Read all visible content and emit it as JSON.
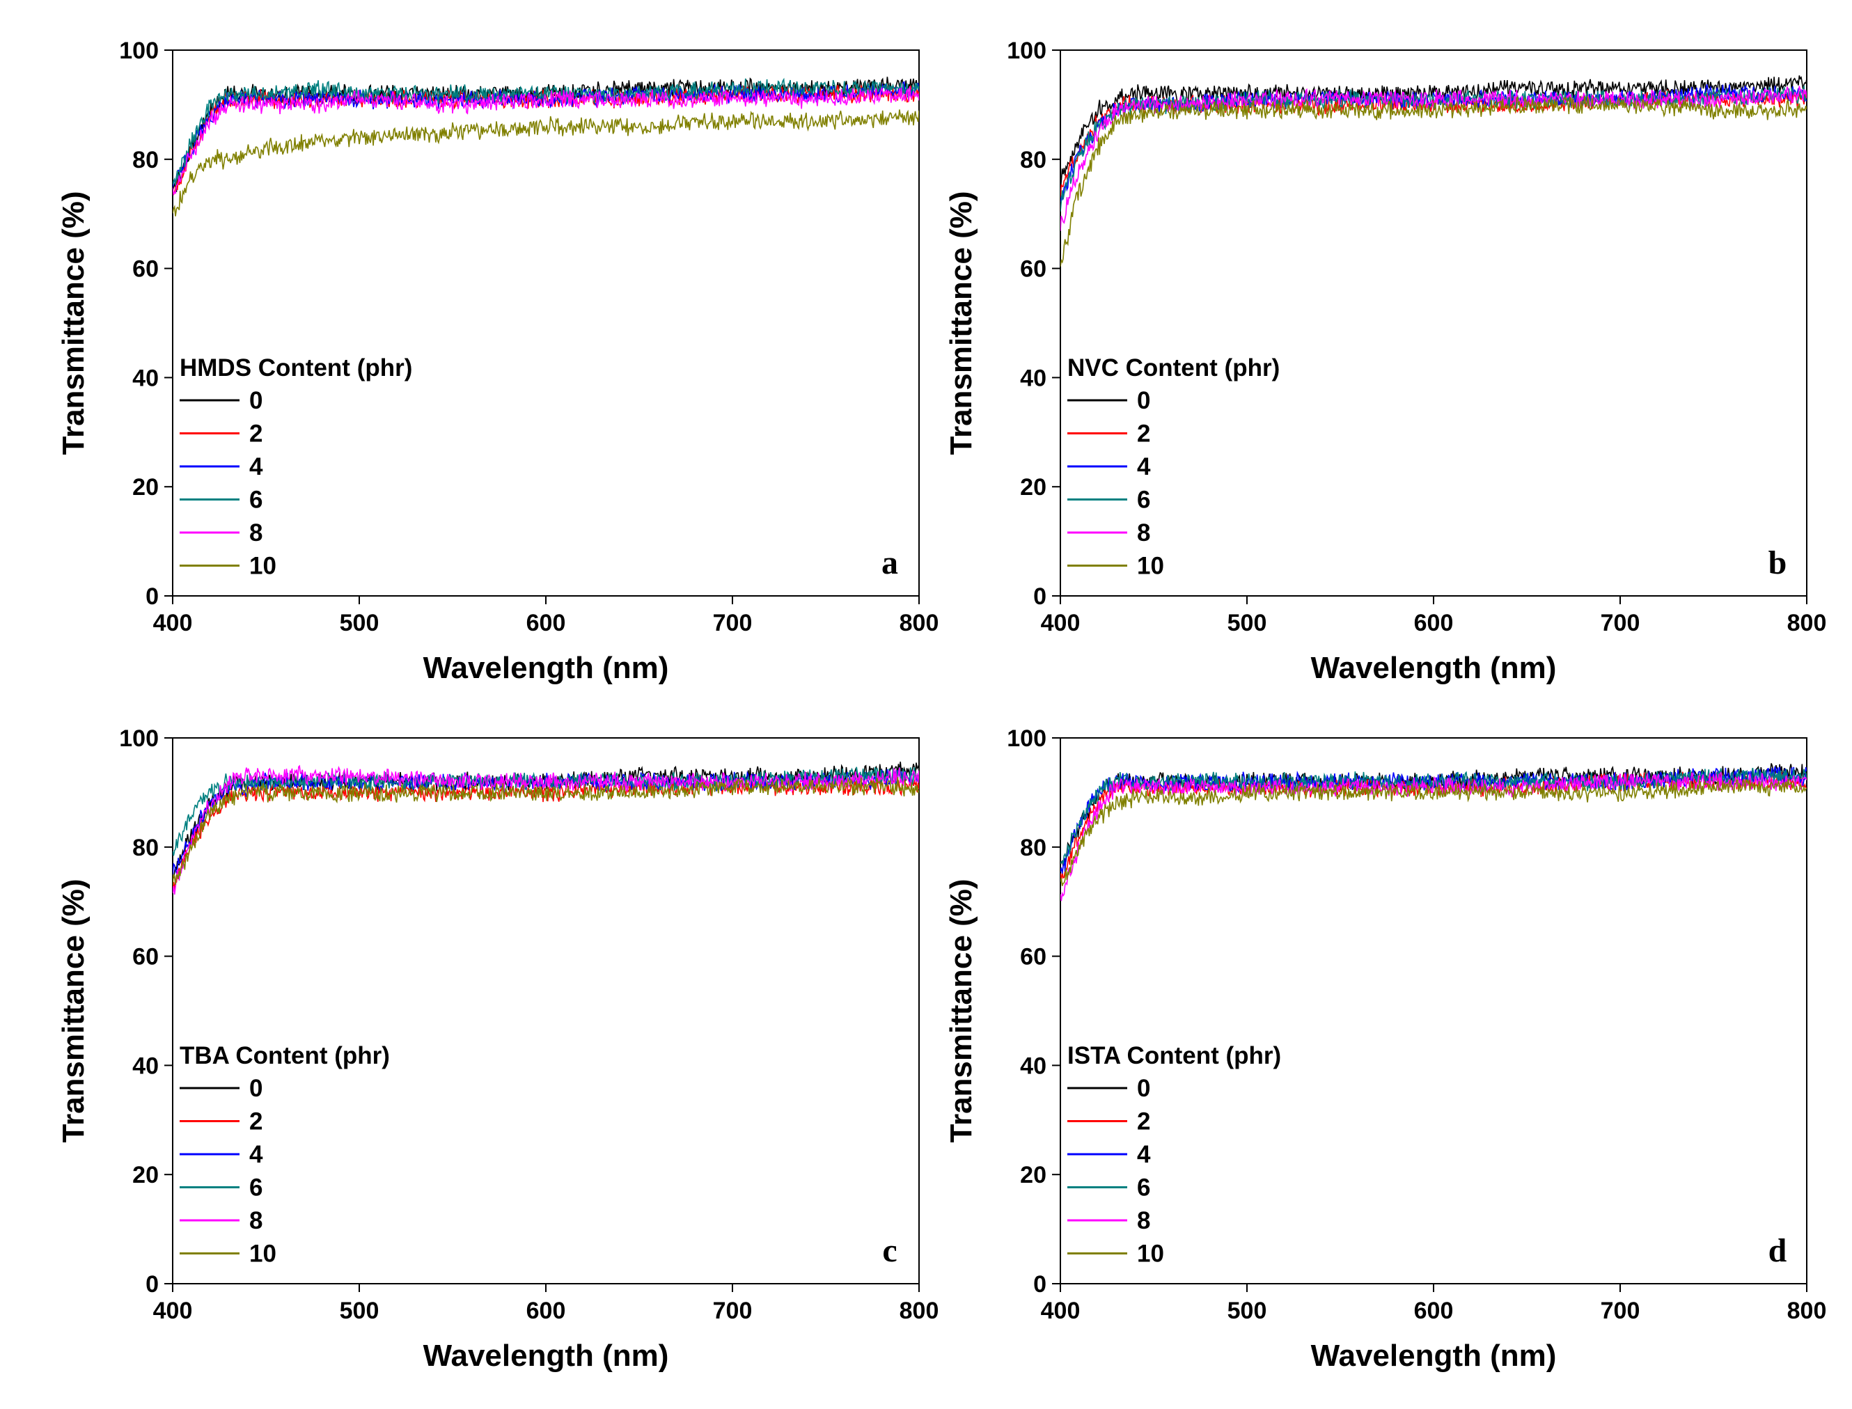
{
  "chart_data": [
    {
      "panel": "a",
      "type": "line",
      "xlabel": "Wavelength (nm)",
      "ylabel": "Transmittance (%)",
      "xlim": [
        400,
        800
      ],
      "ylim": [
        0,
        100
      ],
      "xticks": [
        400,
        500,
        600,
        700,
        800
      ],
      "yticks": [
        0,
        20,
        40,
        60,
        80,
        100
      ],
      "legend_title": "HMDS Content (phr)",
      "legend_position": "lower-left",
      "x": [
        400,
        410,
        420,
        430,
        440,
        450,
        475,
        500,
        550,
        600,
        650,
        700,
        750,
        800
      ],
      "series": [
        {
          "name": "0",
          "color": "#000000",
          "values": [
            74,
            82,
            89,
            92,
            92,
            92,
            92,
            92,
            92,
            92,
            93,
            93,
            93,
            94
          ]
        },
        {
          "name": "2",
          "color": "#ff0000",
          "values": [
            74,
            81,
            88,
            91,
            91,
            91,
            91,
            91,
            91,
            91,
            91,
            92,
            92,
            92
          ]
        },
        {
          "name": "4",
          "color": "#0000ff",
          "values": [
            75,
            82,
            88,
            91,
            91,
            91,
            91,
            91,
            91,
            91,
            92,
            92,
            92,
            93
          ]
        },
        {
          "name": "6",
          "color": "#008080",
          "values": [
            75,
            83,
            90,
            92,
            92,
            92,
            93,
            92,
            92,
            92,
            92,
            93,
            93,
            93
          ]
        },
        {
          "name": "8",
          "color": "#ff00ff",
          "values": [
            74,
            81,
            87,
            90,
            90,
            90,
            90,
            91,
            90,
            91,
            91,
            91,
            91,
            92
          ]
        },
        {
          "name": "10",
          "color": "#808000",
          "values": [
            70,
            77,
            80,
            80,
            81,
            82,
            83,
            84,
            85,
            86,
            86,
            87,
            87,
            88
          ]
        }
      ]
    },
    {
      "panel": "b",
      "type": "line",
      "xlabel": "Wavelength (nm)",
      "ylabel": "Transmittance (%)",
      "xlim": [
        400,
        800
      ],
      "ylim": [
        0,
        100
      ],
      "xticks": [
        400,
        500,
        600,
        700,
        800
      ],
      "yticks": [
        0,
        20,
        40,
        60,
        80,
        100
      ],
      "legend_title": "NVC Content (phr)",
      "legend_position": "lower-left",
      "x": [
        400,
        410,
        420,
        430,
        440,
        450,
        475,
        500,
        550,
        600,
        650,
        700,
        750,
        800
      ],
      "series": [
        {
          "name": "0",
          "color": "#000000",
          "values": [
            76,
            84,
            89,
            91,
            92,
            92,
            92,
            92,
            92,
            92,
            93,
            93,
            93,
            94
          ]
        },
        {
          "name": "2",
          "color": "#ff0000",
          "values": [
            74,
            82,
            87,
            90,
            90,
            90,
            90,
            90,
            90,
            90,
            90,
            91,
            91,
            91
          ]
        },
        {
          "name": "4",
          "color": "#0000ff",
          "values": [
            73,
            81,
            86,
            89,
            90,
            90,
            90,
            91,
            91,
            91,
            91,
            91,
            92,
            92
          ]
        },
        {
          "name": "6",
          "color": "#008080",
          "values": [
            72,
            81,
            86,
            89,
            90,
            90,
            90,
            91,
            91,
            91,
            91,
            91,
            91,
            92
          ]
        },
        {
          "name": "8",
          "color": "#ff00ff",
          "values": [
            68,
            78,
            85,
            89,
            90,
            90,
            90,
            91,
            91,
            91,
            91,
            91,
            91,
            92
          ]
        },
        {
          "name": "10",
          "color": "#808000",
          "values": [
            61,
            74,
            82,
            87,
            88,
            89,
            89,
            89,
            89,
            89,
            90,
            90,
            89,
            89
          ]
        }
      ]
    },
    {
      "panel": "c",
      "type": "line",
      "xlabel": "Wavelength (nm)",
      "ylabel": "Transmittance (%)",
      "xlim": [
        400,
        800
      ],
      "ylim": [
        0,
        100
      ],
      "xticks": [
        400,
        500,
        600,
        700,
        800
      ],
      "yticks": [
        0,
        20,
        40,
        60,
        80,
        100
      ],
      "legend_title": "TBA Content (phr)",
      "legend_position": "lower-left",
      "x": [
        400,
        410,
        420,
        430,
        440,
        450,
        475,
        500,
        550,
        600,
        650,
        700,
        750,
        800
      ],
      "series": [
        {
          "name": "0",
          "color": "#000000",
          "values": [
            75,
            82,
            88,
            91,
            92,
            92,
            92,
            92,
            92,
            92,
            93,
            93,
            93,
            94
          ]
        },
        {
          "name": "2",
          "color": "#ff0000",
          "values": [
            73,
            80,
            86,
            89,
            90,
            90,
            90,
            90,
            90,
            90,
            91,
            91,
            91,
            91
          ]
        },
        {
          "name": "4",
          "color": "#0000ff",
          "values": [
            75,
            82,
            88,
            91,
            91,
            92,
            92,
            92,
            92,
            92,
            92,
            92,
            92,
            93
          ]
        },
        {
          "name": "6",
          "color": "#008080",
          "values": [
            79,
            86,
            90,
            92,
            92,
            92,
            92,
            92,
            92,
            92,
            92,
            92,
            93,
            93
          ]
        },
        {
          "name": "8",
          "color": "#ff00ff",
          "values": [
            72,
            81,
            88,
            92,
            93,
            93,
            93,
            93,
            92,
            92,
            92,
            92,
            92,
            93
          ]
        },
        {
          "name": "10",
          "color": "#808000",
          "values": [
            73,
            80,
            86,
            89,
            90,
            90,
            90,
            90,
            90,
            90,
            90,
            91,
            91,
            91
          ]
        }
      ]
    },
    {
      "panel": "d",
      "type": "line",
      "xlabel": "Wavelength (nm)",
      "ylabel": "Transmittance (%)",
      "xlim": [
        400,
        800
      ],
      "ylim": [
        0,
        100
      ],
      "xticks": [
        400,
        500,
        600,
        700,
        800
      ],
      "yticks": [
        0,
        20,
        40,
        60,
        80,
        100
      ],
      "legend_title": "ISTA Content (phr)",
      "legend_position": "lower-left",
      "x": [
        400,
        410,
        420,
        430,
        440,
        450,
        475,
        500,
        550,
        600,
        650,
        700,
        750,
        800
      ],
      "series": [
        {
          "name": "0",
          "color": "#000000",
          "values": [
            76,
            84,
            89,
            92,
            92,
            92,
            92,
            92,
            92,
            92,
            93,
            93,
            93,
            94
          ]
        },
        {
          "name": "2",
          "color": "#ff0000",
          "values": [
            74,
            82,
            88,
            91,
            91,
            91,
            91,
            91,
            91,
            91,
            91,
            92,
            92,
            92
          ]
        },
        {
          "name": "4",
          "color": "#0000ff",
          "values": [
            75,
            84,
            90,
            92,
            92,
            92,
            92,
            92,
            92,
            92,
            92,
            92,
            93,
            93
          ]
        },
        {
          "name": "6",
          "color": "#008080",
          "values": [
            76,
            84,
            90,
            92,
            92,
            92,
            92,
            92,
            92,
            92,
            92,
            92,
            93,
            93
          ]
        },
        {
          "name": "8",
          "color": "#ff00ff",
          "values": [
            70,
            80,
            87,
            91,
            91,
            91,
            91,
            91,
            91,
            91,
            91,
            92,
            92,
            92
          ]
        },
        {
          "name": "10",
          "color": "#808000",
          "values": [
            73,
            80,
            85,
            88,
            89,
            89,
            89,
            90,
            90,
            90,
            90,
            90,
            91,
            91
          ]
        }
      ]
    }
  ]
}
